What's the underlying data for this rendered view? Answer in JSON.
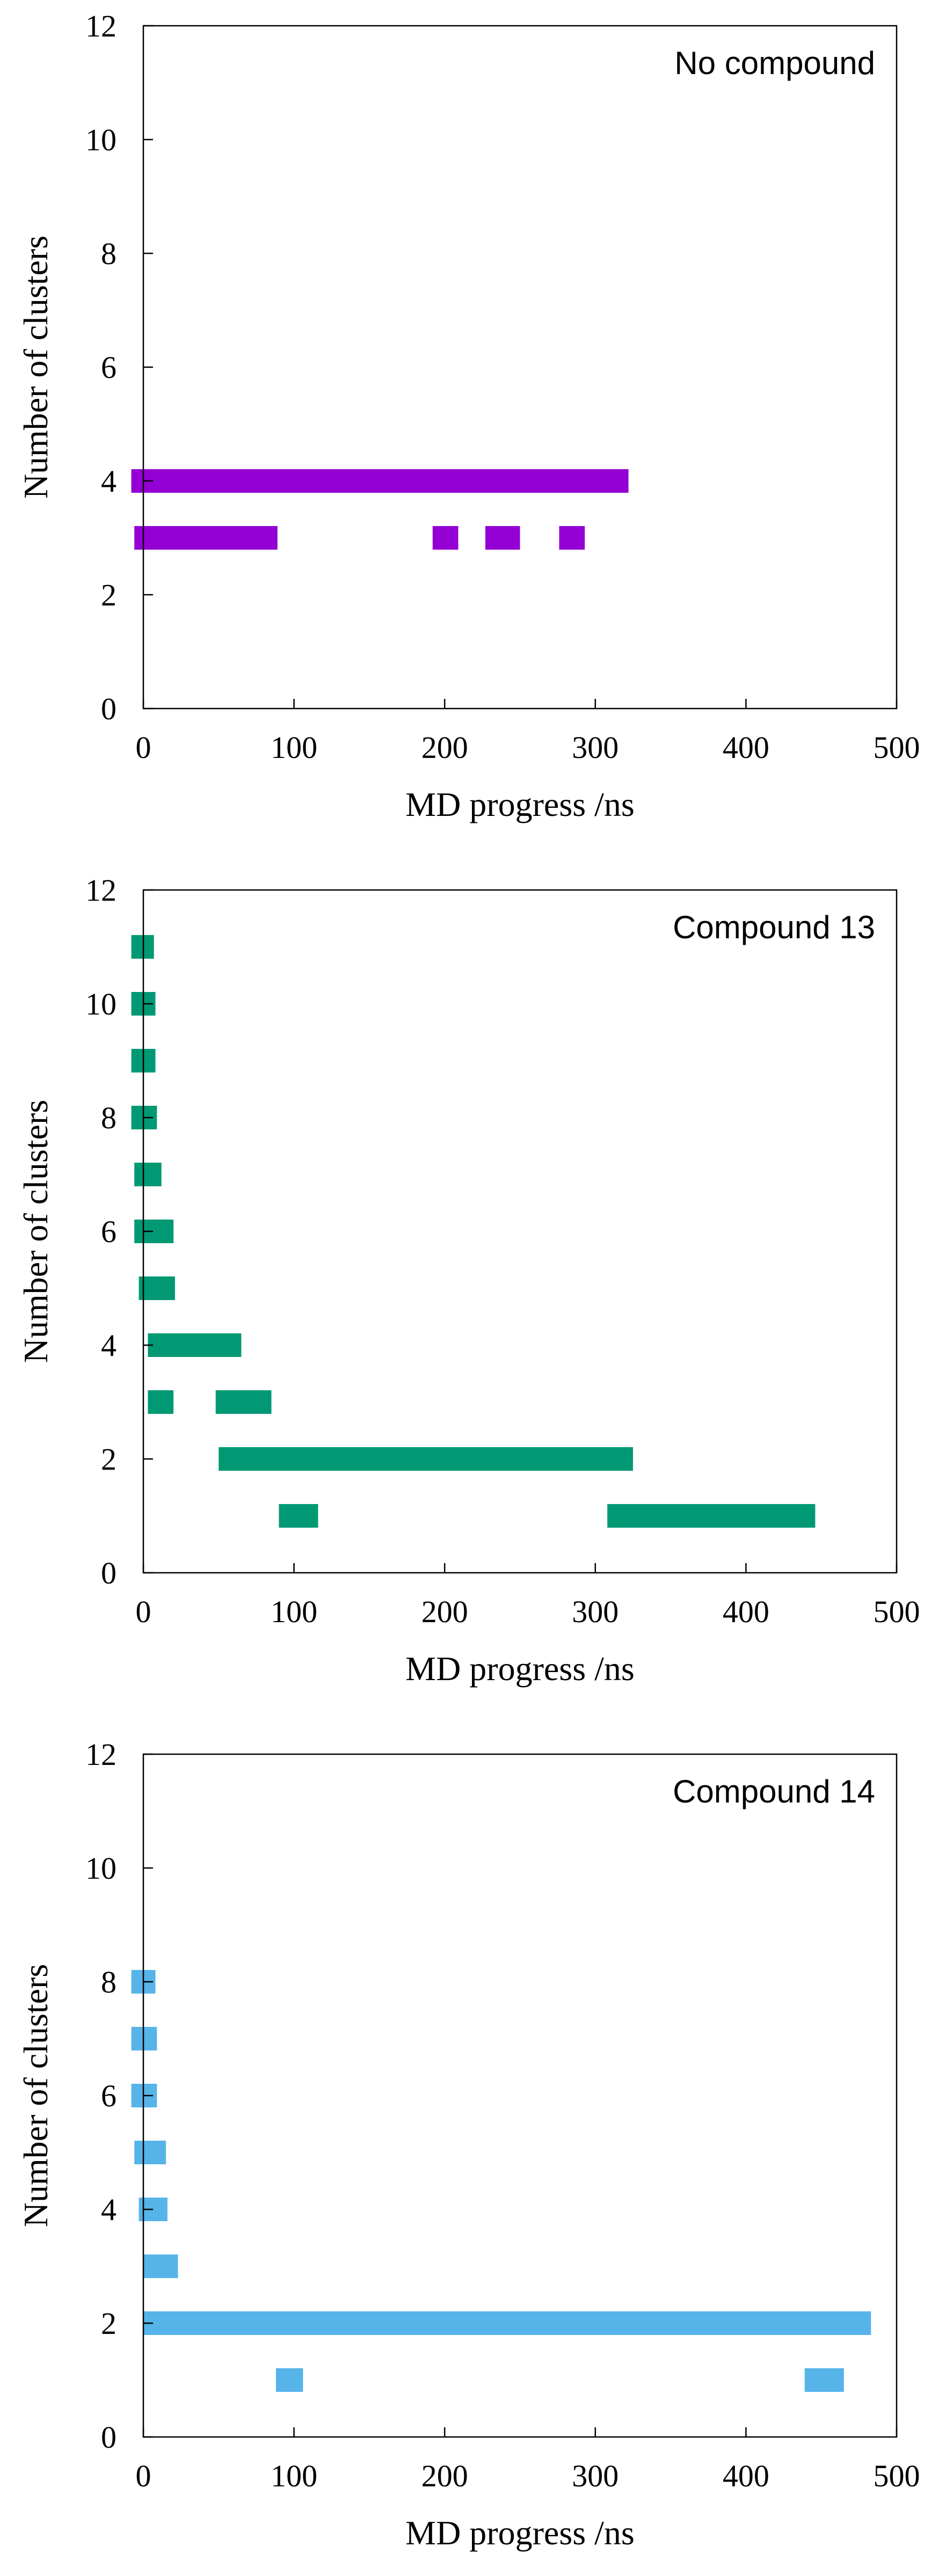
{
  "chart_data": [
    {
      "type": "bar",
      "subtype": "gantt",
      "annotation": "No compound",
      "xlabel": "MD progress /ns",
      "ylabel": "Number of clusters",
      "xlim": [
        0,
        500
      ],
      "ylim": [
        0,
        12
      ],
      "xticks": [
        0,
        100,
        200,
        300,
        400,
        500
      ],
      "yticks": [
        0,
        2,
        4,
        6,
        8,
        10,
        12
      ],
      "color": "#9400d3",
      "grid": false,
      "legend": "none",
      "segments": [
        {
          "y": 4,
          "start": -8,
          "end": 322
        },
        {
          "y": 3,
          "start": -6,
          "end": 89
        },
        {
          "y": 3,
          "start": 192,
          "end": 209
        },
        {
          "y": 3,
          "start": 227,
          "end": 250
        },
        {
          "y": 3,
          "start": 276,
          "end": 293
        }
      ]
    },
    {
      "type": "bar",
      "subtype": "gantt",
      "annotation": "Compound 13",
      "xlabel": "MD progress /ns",
      "ylabel": "Number of clusters",
      "xlim": [
        0,
        500
      ],
      "ylim": [
        0,
        12
      ],
      "xticks": [
        0,
        100,
        200,
        300,
        400,
        500
      ],
      "yticks": [
        0,
        2,
        4,
        6,
        8,
        10,
        12
      ],
      "color": "#009973",
      "grid": false,
      "legend": "none",
      "segments": [
        {
          "y": 11,
          "start": -8,
          "end": 7
        },
        {
          "y": 10,
          "start": -8,
          "end": 8
        },
        {
          "y": 9,
          "start": -8,
          "end": 8
        },
        {
          "y": 8,
          "start": -8,
          "end": 9
        },
        {
          "y": 7,
          "start": -6,
          "end": 12
        },
        {
          "y": 6,
          "start": -6,
          "end": 20
        },
        {
          "y": 5,
          "start": -3,
          "end": 21
        },
        {
          "y": 4,
          "start": 3,
          "end": 65
        },
        {
          "y": 3,
          "start": 3,
          "end": 20
        },
        {
          "y": 3,
          "start": 48,
          "end": 85
        },
        {
          "y": 2,
          "start": 50,
          "end": 325
        },
        {
          "y": 1,
          "start": 90,
          "end": 116
        },
        {
          "y": 1,
          "start": 308,
          "end": 446
        }
      ]
    },
    {
      "type": "bar",
      "subtype": "gantt",
      "annotation": "Compound 14",
      "xlabel": "MD progress /ns",
      "ylabel": "Number of clusters",
      "xlim": [
        0,
        500
      ],
      "ylim": [
        0,
        12
      ],
      "xticks": [
        0,
        100,
        200,
        300,
        400,
        500
      ],
      "yticks": [
        0,
        2,
        4,
        6,
        8,
        10,
        12
      ],
      "color": "#56b4e9",
      "grid": false,
      "legend": "none",
      "segments": [
        {
          "y": 8,
          "start": -8,
          "end": 8
        },
        {
          "y": 7,
          "start": -8,
          "end": 9
        },
        {
          "y": 6,
          "start": -8,
          "end": 9
        },
        {
          "y": 5,
          "start": -6,
          "end": 15
        },
        {
          "y": 4,
          "start": -3,
          "end": 16
        },
        {
          "y": 3,
          "start": 0,
          "end": 23
        },
        {
          "y": 2,
          "start": 0,
          "end": 483
        },
        {
          "y": 1,
          "start": 88,
          "end": 106
        },
        {
          "y": 1,
          "start": 439,
          "end": 465
        }
      ]
    }
  ]
}
